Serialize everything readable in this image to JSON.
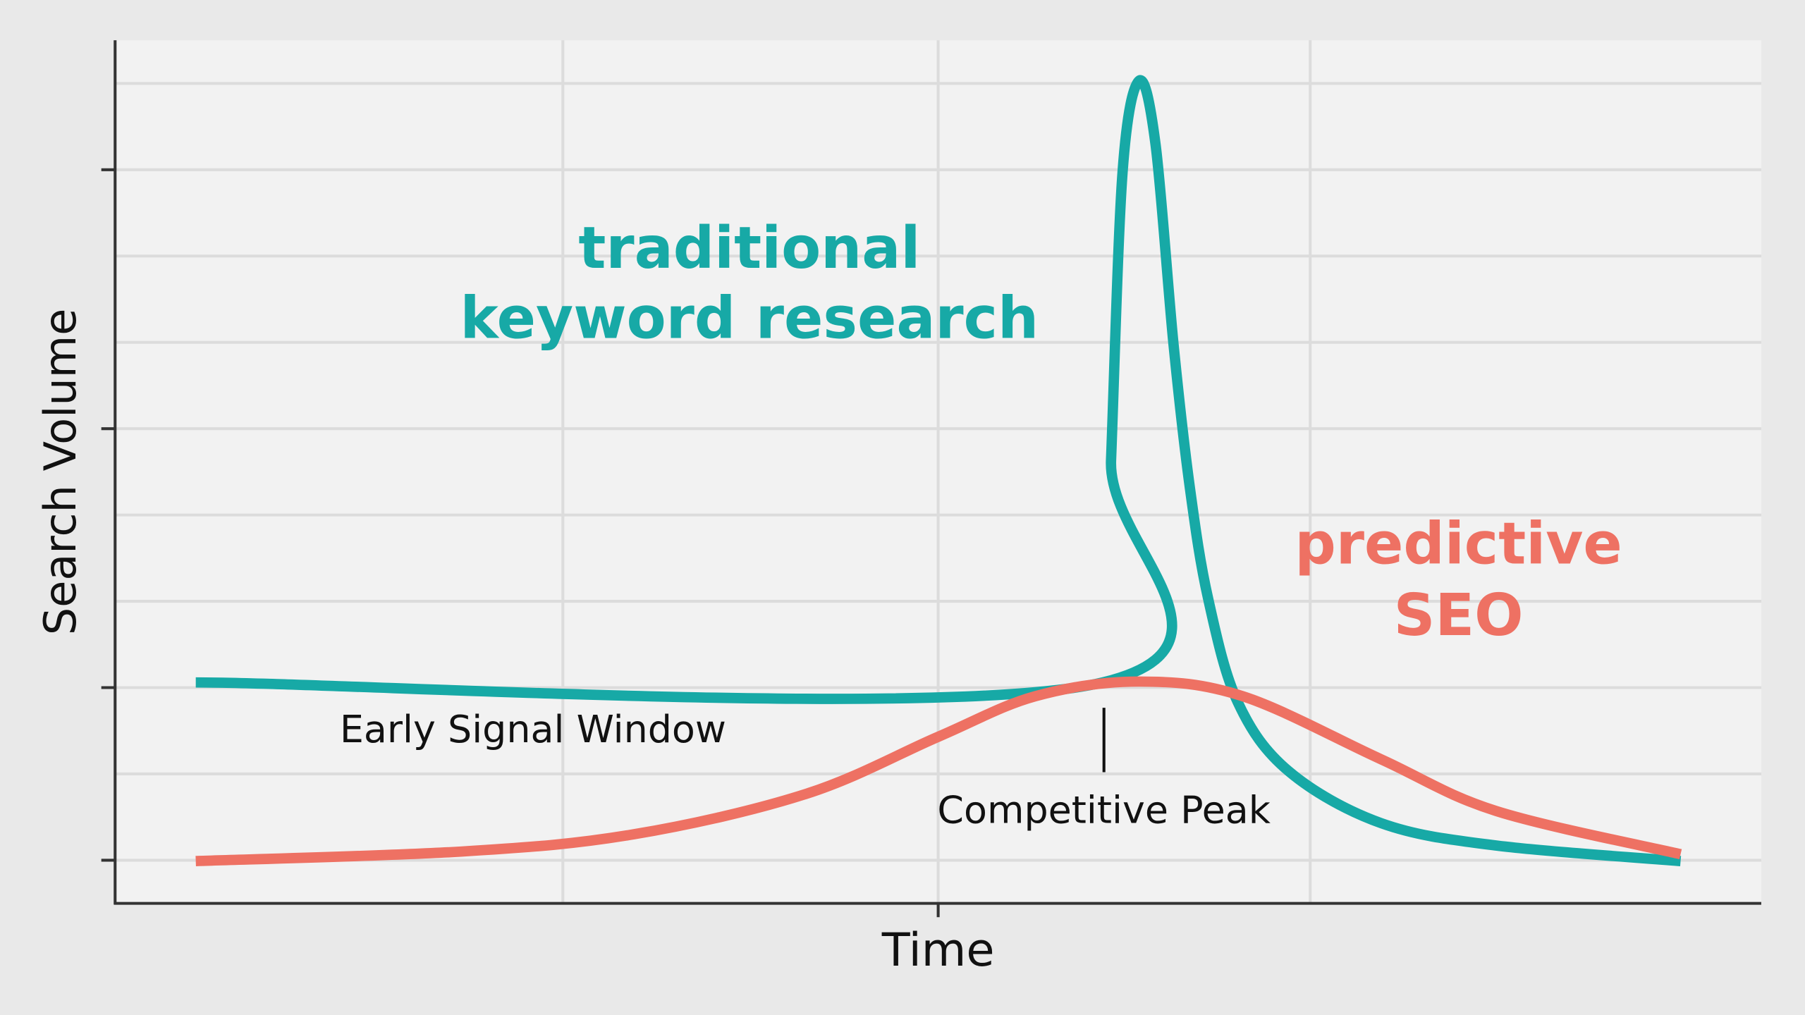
{
  "chart_data": {
    "type": "line",
    "xlabel": "Time",
    "ylabel": "Search Volume",
    "xlim": [
      0,
      100
    ],
    "ylim": [
      0,
      100
    ],
    "xticks": [
      50
    ],
    "yticks": [
      5,
      25,
      55,
      85
    ],
    "xgrid": [
      27.2,
      50,
      72.6
    ],
    "ygrid": [
      5,
      15,
      25,
      35,
      45,
      55,
      65,
      75,
      85,
      95
    ],
    "grid": true,
    "series": [
      {
        "color": "#17a9a6",
        "x": [
          4.9,
          60.0,
          60.5,
          61.2,
          62.2,
          63.2,
          64.3,
          65.3,
          66.4,
          68.2,
          71.3,
          76.9,
          83.9,
          95.1
        ],
        "values": [
          25.6,
          25.6,
          51.3,
          84.7,
          95.3,
          88,
          64.7,
          48,
          35.3,
          23.3,
          15.3,
          9.3,
          6.7,
          4.9
        ]
      },
      {
        "color": "#ee7163",
        "x": [
          4.9,
          21,
          31.5,
          42,
          50,
          55.9,
          62.2,
          68.5,
          76.9,
          83.9,
          95.1
        ],
        "values": [
          4.9,
          6,
          8,
          12.7,
          19.3,
          24,
          25.7,
          24,
          16.7,
          10.7,
          5.7
        ]
      }
    ],
    "annotations": [
      {
        "lines": [
          "traditional",
          "keyword research"
        ],
        "color": "#17a9a6"
      },
      {
        "lines": [
          "predictive",
          "SEO"
        ],
        "color": "#ee7163"
      },
      {
        "lines": [
          "Early Signal Window"
        ],
        "color": "#111111"
      },
      {
        "lines": [
          "Competitive Peak"
        ],
        "color": "#111111"
      }
    ]
  }
}
